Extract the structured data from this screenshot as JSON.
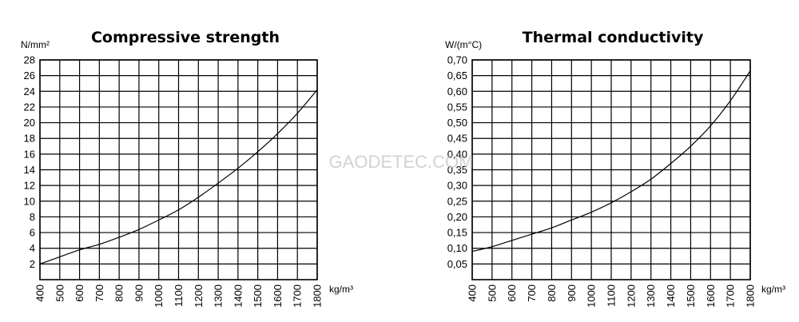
{
  "watermark": "GAODETEC.COM",
  "chart_data": [
    {
      "type": "line",
      "title": "Compressive strength",
      "ylabel": "N/mm²",
      "xlabel": "kg/m³",
      "xlim": [
        400,
        1800
      ],
      "ylim": [
        0,
        28
      ],
      "grid": true,
      "x_ticks": [
        400,
        500,
        600,
        700,
        800,
        900,
        1000,
        1100,
        1200,
        1300,
        1400,
        1500,
        1600,
        1700,
        1800
      ],
      "y_ticks": [
        "2",
        "4",
        "6",
        "8",
        "10",
        "12",
        "14",
        "16",
        "18",
        "20",
        "22",
        "24",
        "26",
        "28"
      ],
      "y_tick_values": [
        2,
        4,
        6,
        8,
        10,
        12,
        14,
        16,
        18,
        20,
        22,
        24,
        26,
        28
      ],
      "series": [
        {
          "x": [
            400,
            500,
            600,
            700,
            800,
            900,
            1000,
            1100,
            1200,
            1300,
            1400,
            1500,
            1600,
            1700,
            1800
          ],
          "y": [
            2.0,
            2.9,
            3.8,
            4.5,
            5.4,
            6.4,
            7.6,
            8.9,
            10.5,
            12.3,
            14.2,
            16.3,
            18.6,
            21.2,
            24.2
          ]
        }
      ]
    },
    {
      "type": "line",
      "title": "Thermal conductivity",
      "ylabel": "W/(m°C)",
      "xlabel": "kg/m³",
      "xlim": [
        400,
        1800
      ],
      "ylim": [
        0,
        0.7
      ],
      "grid": true,
      "x_ticks": [
        400,
        500,
        600,
        700,
        800,
        900,
        1000,
        1100,
        1200,
        1300,
        1400,
        1500,
        1600,
        1700,
        1800
      ],
      "y_ticks": [
        "0,05",
        "0,10",
        "0,15",
        "0,20",
        "0,25",
        "0,30",
        "0,35",
        "0,40",
        "0,45",
        "0,50",
        "0,55",
        "0,60",
        "0,65",
        "0,70"
      ],
      "y_tick_values": [
        0.05,
        0.1,
        0.15,
        0.2,
        0.25,
        0.3,
        0.35,
        0.4,
        0.45,
        0.5,
        0.55,
        0.6,
        0.65,
        0.7
      ],
      "series": [
        {
          "x": [
            400,
            500,
            600,
            700,
            800,
            900,
            1000,
            1100,
            1200,
            1300,
            1400,
            1500,
            1600,
            1700,
            1800
          ],
          "y": [
            0.09,
            0.105,
            0.125,
            0.145,
            0.165,
            0.19,
            0.215,
            0.245,
            0.28,
            0.32,
            0.37,
            0.425,
            0.49,
            0.57,
            0.665
          ]
        }
      ]
    }
  ]
}
